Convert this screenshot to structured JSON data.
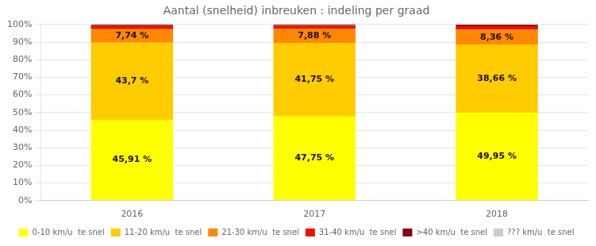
{
  "chart_data": {
    "type": "bar",
    "title": "Aantal (snelheid) inbreuken : indeling per graad",
    "categories": [
      "2016",
      "2017",
      "2018"
    ],
    "stacked": true,
    "grid": true,
    "legend": "bottom",
    "data_labels": true,
    "series": [
      {
        "name": "0-10 km/u  te snel",
        "color": "#FFFF00",
        "values": [
          45.91,
          47.75,
          49.95
        ],
        "value_labels": [
          "45,91 %",
          "47,75 %",
          "49,95 %"
        ]
      },
      {
        "name": "11-20 km/u  te snel",
        "color": "#FFCC00",
        "values": [
          43.7,
          41.75,
          38.66
        ],
        "value_labels": [
          "43,7 %",
          "41,75 %",
          "38,66 %"
        ]
      },
      {
        "name": "21-30 km/u  te snel",
        "color": "#FF8800",
        "values": [
          7.74,
          7.88,
          8.36
        ],
        "value_labels": [
          "7,74 %",
          "7,88 %",
          "8,36 %"
        ]
      },
      {
        "name": "31-40 km/u  te snel",
        "color": "#EE1100",
        "values": [
          1.8,
          1.8,
          2.0
        ]
      },
      {
        "name": ">40 km/u  te snel",
        "color": "#880000",
        "values": [
          0.6,
          0.6,
          0.8
        ]
      },
      {
        "name": "??? km/u  te snel",
        "color": "#CCCCCC",
        "values": [
          0.25,
          0.22,
          0.23
        ]
      }
    ],
    "ylim": [
      0,
      100
    ],
    "yticks": [
      {
        "value": 0,
        "label": "0%"
      },
      {
        "value": 10,
        "label": "10%"
      },
      {
        "value": 20,
        "label": "20%"
      },
      {
        "value": 30,
        "label": "30%"
      },
      {
        "value": 40,
        "label": "40%"
      },
      {
        "value": 50,
        "label": "50%"
      },
      {
        "value": 60,
        "label": "60%"
      },
      {
        "value": 70,
        "label": "70%"
      },
      {
        "value": 80,
        "label": "80%"
      },
      {
        "value": 90,
        "label": "90%"
      },
      {
        "value": 100,
        "label": "100%"
      }
    ]
  }
}
